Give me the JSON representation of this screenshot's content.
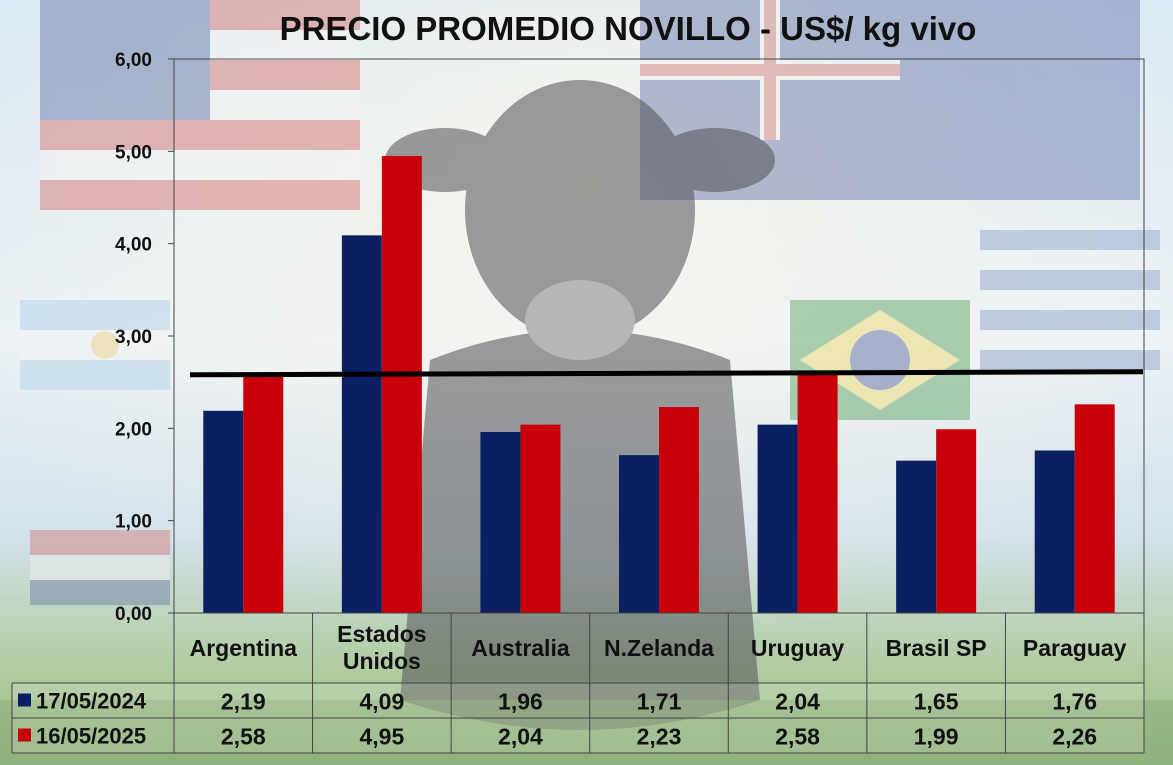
{
  "chart_data": {
    "type": "bar",
    "title": "PRECIO PROMEDIO NOVILLO  - US$/ kg vivo",
    "categories": [
      "Argentina",
      "Estados Unidos",
      "Australia",
      "N.Zelanda",
      "Uruguay",
      "Brasil SP",
      "Paraguay"
    ],
    "category_lines": [
      [
        "Argentina"
      ],
      [
        "Estados",
        "Unidos"
      ],
      [
        "Australia"
      ],
      [
        "N.Zelanda"
      ],
      [
        "Uruguay"
      ],
      [
        "Brasil SP"
      ],
      [
        "Paraguay"
      ]
    ],
    "series": [
      {
        "name": "17/05/2024",
        "color": "#0a2063",
        "values": [
          2.19,
          4.09,
          1.96,
          1.71,
          2.04,
          1.65,
          1.76
        ],
        "labels": [
          "2,19",
          "4,09",
          "1,96",
          "1,71",
          "2,04",
          "1,65",
          "1,76"
        ]
      },
      {
        "name": "16/05/2025",
        "color": "#c8000a",
        "values": [
          2.58,
          4.95,
          2.04,
          2.23,
          2.58,
          1.99,
          2.26
        ],
        "labels": [
          "2,58",
          "4,95",
          "2,04",
          "2,23",
          "2,58",
          "1,99",
          "2,26"
        ]
      }
    ],
    "reference_line": {
      "value": 2.58,
      "color": "#000000"
    },
    "ylim": [
      0,
      6
    ],
    "yticks": [
      0,
      1,
      2,
      3,
      4,
      5,
      6
    ],
    "ytick_labels": [
      "0,00",
      "1,00",
      "2,00",
      "3,00",
      "4,00",
      "5,00",
      "6,00"
    ],
    "grid": false,
    "legend": "data-table",
    "xlabel": "",
    "ylabel": ""
  }
}
